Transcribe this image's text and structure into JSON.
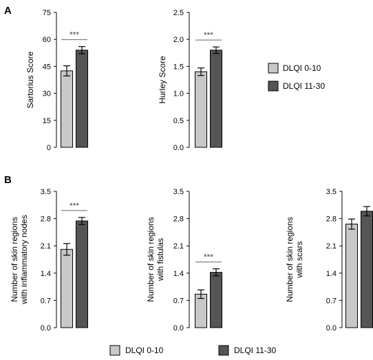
{
  "panels": [
    {
      "label": "A"
    },
    {
      "label": "B"
    }
  ],
  "colors": {
    "group1": "#c8c8c8",
    "group2": "#555555",
    "sig_line": "#666666"
  },
  "legends": [
    {
      "items": [
        {
          "label": "DLQI 0-10"
        },
        {
          "label": "DLQI 11-30"
        }
      ]
    },
    {
      "items": [
        {
          "label": "DLQI 0-10"
        },
        {
          "label": "DLQI 11-30"
        }
      ]
    }
  ],
  "chart_data": [
    {
      "type": "bar",
      "panel": "A",
      "categories": [
        "DLQI 0-10",
        "DLQI 11-30"
      ],
      "values": [
        42.5,
        54.0
      ],
      "errors": [
        2.8,
        2.0
      ],
      "ylabel": [
        "Sartorius Score"
      ],
      "yticks": [
        "0",
        "15",
        "30",
        "45",
        "60",
        "75"
      ],
      "ylim": [
        0,
        75
      ],
      "significance": "***"
    },
    {
      "type": "bar",
      "panel": "A",
      "categories": [
        "DLQI 0-10",
        "DLQI 11-30"
      ],
      "values": [
        1.4,
        1.8
      ],
      "errors": [
        0.07,
        0.06
      ],
      "ylabel": [
        "Hurley Score"
      ],
      "yticks": [
        "0.0",
        "0.5",
        "1.0",
        "1.5",
        "2.0",
        "2.5"
      ],
      "ylim": [
        0,
        2.5
      ],
      "significance": "***"
    },
    {
      "type": "bar",
      "panel": "B",
      "categories": [
        "DLQI 0-10",
        "DLQI 11-30"
      ],
      "values": [
        2.01,
        2.74
      ],
      "errors": [
        0.15,
        0.09
      ],
      "ylabel": [
        "Number of skin regions",
        "with inflammatory nodes"
      ],
      "yticks": [
        "0.0",
        "0.7",
        "1.4",
        "2.1",
        "2.8",
        "3.5"
      ],
      "ylim": [
        0,
        3.5
      ],
      "significance": "***"
    },
    {
      "type": "bar",
      "panel": "B",
      "categories": [
        "DLQI 0-10",
        "DLQI 11-30"
      ],
      "values": [
        0.86,
        1.42
      ],
      "errors": [
        0.11,
        0.09
      ],
      "ylabel": [
        "Number of skin regions",
        "with fistulas"
      ],
      "yticks": [
        "0.0",
        "0.7",
        "1.4",
        "2.1",
        "2.8",
        "3.5"
      ],
      "ylim": [
        0,
        3.5
      ],
      "significance": "***"
    },
    {
      "type": "bar",
      "panel": "B",
      "categories": [
        "DLQI 0-10",
        "DLQI 11-30"
      ],
      "values": [
        2.66,
        2.99
      ],
      "errors": [
        0.13,
        0.12
      ],
      "ylabel": [
        "Number of skin regions",
        "with  scars"
      ],
      "yticks": [
        "0.0",
        "0.7",
        "1.4",
        "2.1",
        "2.8",
        "3.5"
      ],
      "ylim": [
        0,
        3.5
      ],
      "significance": ""
    }
  ]
}
